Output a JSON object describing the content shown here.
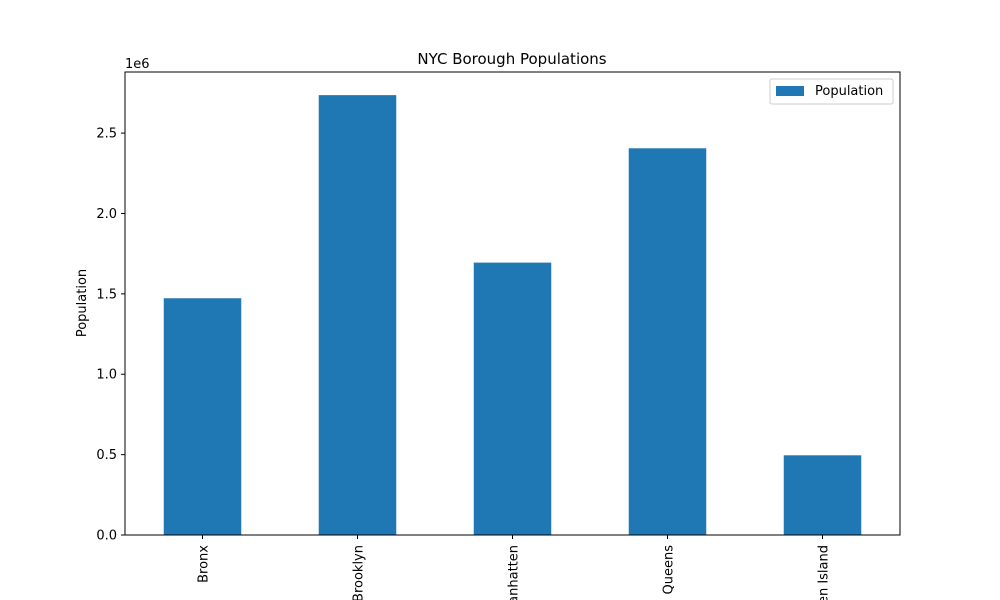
{
  "chart_data": {
    "type": "bar",
    "title": "NYC Borough Populations",
    "xlabel": "",
    "ylabel": "Population",
    "y_offset_label": "1e6",
    "categories": [
      "Bronx",
      "Brooklyn",
      "Manhatten",
      "Queens",
      "Staten Island"
    ],
    "series": [
      {
        "name": "Population",
        "values": [
          1472654,
          2736074,
          1694251,
          2405464,
          495747
        ]
      }
    ],
    "ylim": [
      0,
      2880000
    ],
    "yticks": [
      0.0,
      0.5,
      1.0,
      1.5,
      2.0,
      2.5
    ],
    "ytick_labels": [
      "0.0",
      "0.5",
      "1.0",
      "1.5",
      "2.0",
      "2.5"
    ],
    "y_tick_scale": 1000000,
    "grid": false,
    "legend_position": "top-right",
    "colors": {
      "bar": "#1f77b4"
    }
  }
}
